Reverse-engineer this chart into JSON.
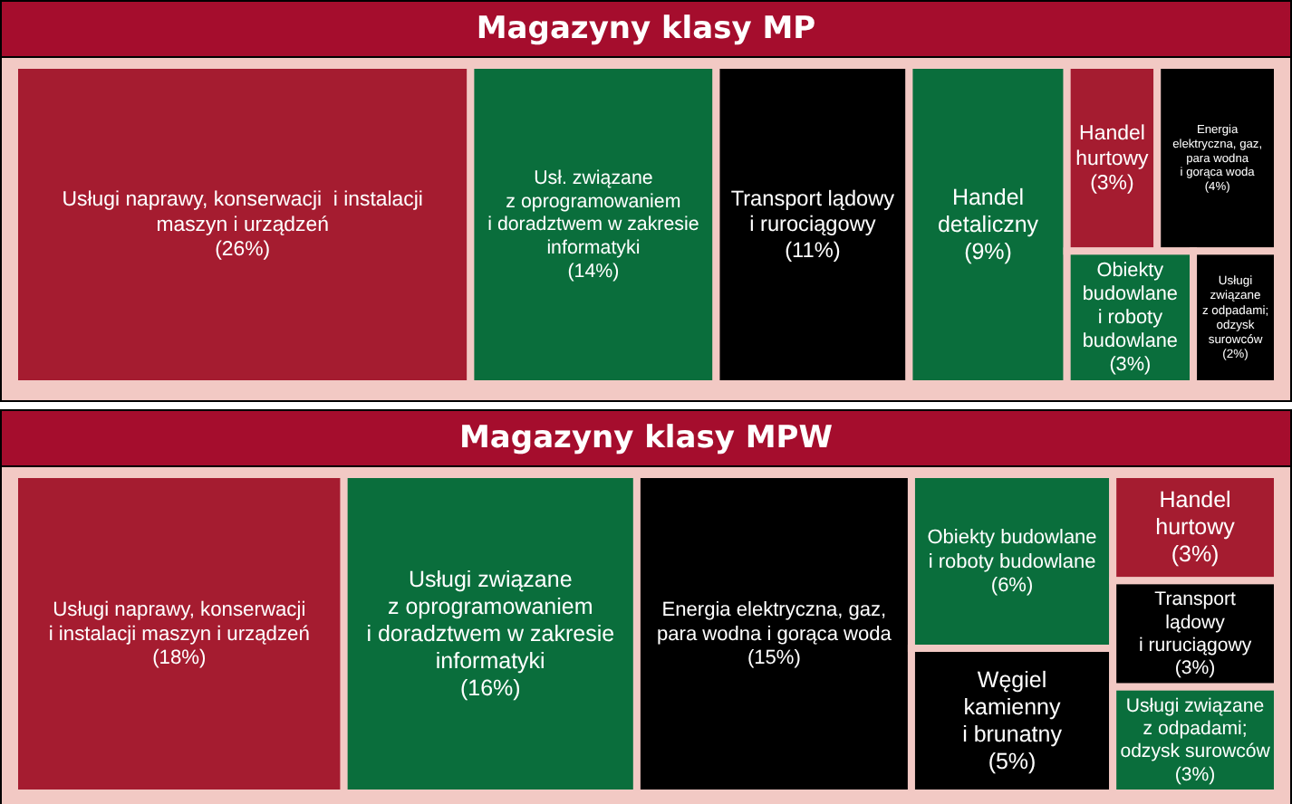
{
  "chart_data": [
    {
      "type": "other",
      "title": "Magazyny klasy MP",
      "categories": [
        "Usługi naprawy, konserwacji  i instalacji\nmaszyn i urządzeń",
        "Usł. związane\nz oprogramowaniem\ni doradztwem w zakresie\ninformatyki",
        "Transport lądowy\ni rurociągowy",
        "Handel\ndetaliczny",
        "Handel\nhurtowy",
        "Energia\nelektryczna, gaz,\npara wodna\ni gorąca woda",
        "Obiekty\nbudowlane\ni roboty\nbudowlane",
        "Usługi\nzwiązane\nz odpadami;\nodzysk\nsurowców"
      ],
      "values": [
        26,
        14,
        11,
        9,
        3,
        4,
        3,
        2
      ],
      "value_labels": [
        "(26%)",
        "(14%)",
        "(11%)",
        "(9%)",
        "(3%)",
        "(4%)",
        "(3%)",
        "(2%)"
      ],
      "colors": [
        "#a51c30",
        "#0a6e3c",
        "#000000",
        "#0a6e3c",
        "#a51c30",
        "#000000",
        "#0a6e3c",
        "#000000"
      ]
    },
    {
      "type": "other",
      "title": "Magazyny klasy MPW",
      "categories": [
        "Usługi naprawy, konserwacji\ni instalacji maszyn i urządzeń",
        "Usługi związane\nz oprogramowaniem\ni doradztwem w zakresie\ninformatyki",
        "Energia elektryczna, gaz,\npara wodna i gorąca woda",
        "Obiekty budowlane\ni roboty budowlane",
        "Węgiel\nkamienny\ni brunatny",
        "Handel\nhurtowy",
        "Transport\nlądowy\ni ruruciągowy",
        "Usługi związane\nz odpadami;\nodzysk surowców"
      ],
      "values": [
        18,
        16,
        15,
        6,
        5,
        3,
        3,
        3
      ],
      "value_labels": [
        "(18%)",
        "(16%)",
        "(15%)",
        "(6%)",
        "(5%)",
        "(3%)",
        "(3%)",
        "(3%)"
      ],
      "colors": [
        "#a51c30",
        "#0a6e3c",
        "#000000",
        "#0a6e3c",
        "#000000",
        "#a51c30",
        "#000000",
        "#0a6e3c"
      ]
    }
  ]
}
